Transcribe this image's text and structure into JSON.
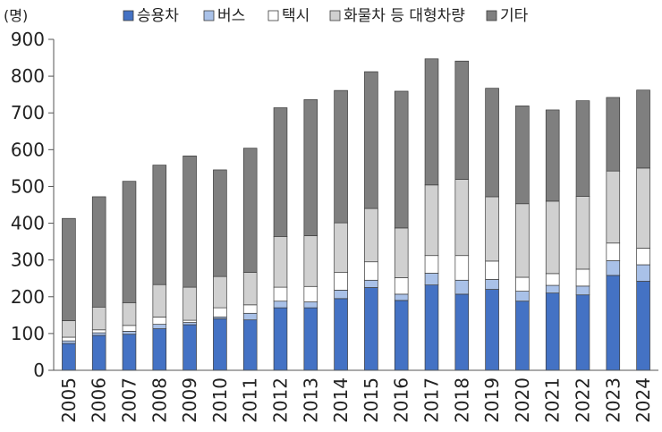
{
  "chart_data": {
    "type": "bar",
    "stacked": true,
    "unit_label": "(명)",
    "categories": [
      "2005",
      "2006",
      "2007",
      "2008",
      "2009",
      "2010",
      "2011",
      "2012",
      "2013",
      "2014",
      "2015",
      "2016",
      "2017",
      "2018",
      "2019",
      "2020",
      "2021",
      "2022",
      "2023",
      "2024"
    ],
    "ylim": [
      0,
      900
    ],
    "yticks": [
      0,
      100,
      200,
      300,
      400,
      500,
      600,
      700,
      800,
      900
    ],
    "grid": false,
    "legend_position": "top",
    "series": [
      {
        "name": "승용차",
        "color": "#4472C4",
        "values": [
          73,
          95,
          98,
          113,
          124,
          140,
          137,
          170,
          170,
          195,
          225,
          190,
          232,
          207,
          220,
          188,
          210,
          205,
          258,
          242
        ]
      },
      {
        "name": "버스",
        "color": "#A9C1E8",
        "values": [
          7,
          7,
          8,
          12,
          6,
          5,
          18,
          18,
          16,
          23,
          20,
          17,
          32,
          38,
          27,
          27,
          21,
          24,
          40,
          45
        ]
      },
      {
        "name": "택시",
        "color": "#FFFFFF",
        "values": [
          10,
          8,
          16,
          20,
          6,
          25,
          23,
          38,
          42,
          48,
          50,
          45,
          48,
          67,
          50,
          38,
          32,
          46,
          48,
          45
        ]
      },
      {
        "name": "화물차 등 대형차량",
        "color": "#D0D0D0",
        "values": [
          45,
          62,
          62,
          88,
          90,
          85,
          88,
          138,
          138,
          135,
          145,
          135,
          192,
          207,
          175,
          200,
          197,
          198,
          196,
          218
        ]
      },
      {
        "name": "기타",
        "color": "#7F7F7F",
        "values": [
          278,
          300,
          330,
          325,
          357,
          290,
          338,
          350,
          370,
          360,
          372,
          372,
          343,
          322,
          295,
          266,
          248,
          260,
          200,
          212
        ]
      }
    ]
  }
}
